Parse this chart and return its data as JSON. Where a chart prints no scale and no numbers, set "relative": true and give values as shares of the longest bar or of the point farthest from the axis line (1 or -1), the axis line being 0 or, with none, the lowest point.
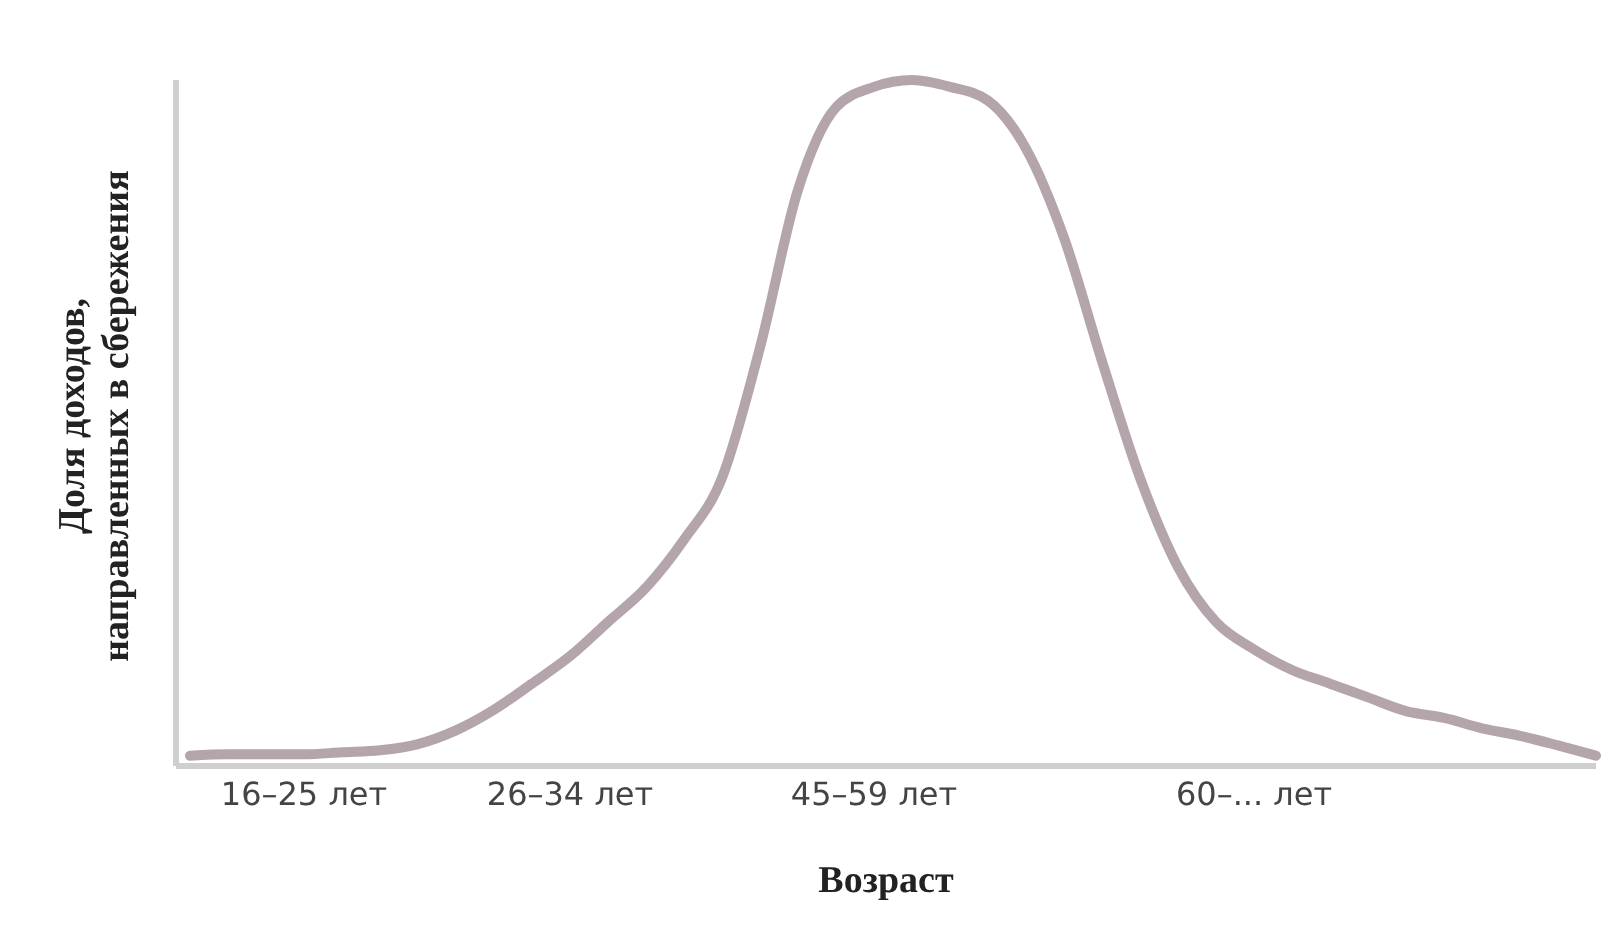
{
  "chart_data": {
    "type": "line",
    "relative": true,
    "xlabel": "Возраст",
    "ylabel": "Доля доходов,\nнаправленных в сбережения",
    "marker": "none",
    "grid": false,
    "legend": false,
    "categories": [
      null,
      null,
      null,
      "16–25 лет",
      null,
      null,
      null,
      null,
      null,
      null,
      "26–34 лет",
      null,
      null,
      null,
      null,
      null,
      null,
      null,
      "45–59 лет",
      null,
      null,
      null,
      null,
      null,
      null,
      null,
      null,
      null,
      "60–... лет",
      null,
      null,
      null,
      null,
      null,
      null,
      null,
      null,
      null
    ],
    "series": [
      {
        "color": "#a08f96",
        "values": [
          0.015,
          0.017,
          0.017,
          0.017,
          0.02,
          0.023,
          0.032,
          0.052,
          0.082,
          0.12,
          0.16,
          0.21,
          0.26,
          0.33,
          0.42,
          0.61,
          0.84,
          0.96,
          0.99,
          1,
          0.99,
          0.97,
          0.9,
          0.77,
          0.59,
          0.42,
          0.29,
          0.21,
          0.17,
          0.14,
          0.12,
          0.1,
          0.08,
          0.07,
          0.055,
          0.044,
          0.03,
          0.015
        ]
      }
    ]
  }
}
